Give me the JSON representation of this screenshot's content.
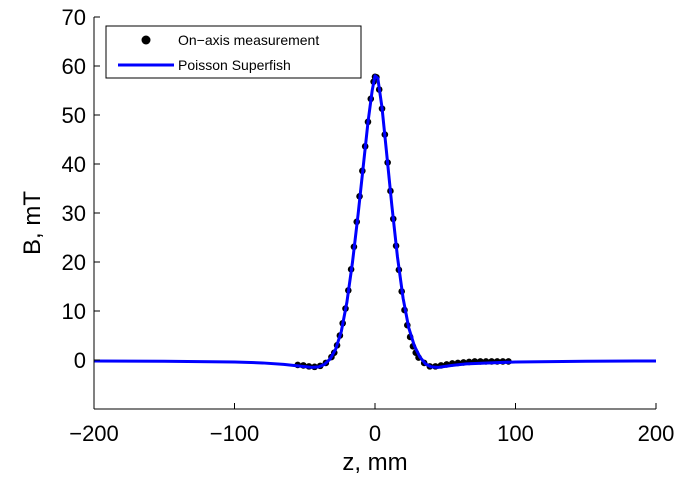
{
  "chart_data": {
    "type": "line",
    "title": "",
    "xlabel": "z, mm",
    "ylabel": "B, mT",
    "xlim": [
      -200,
      200
    ],
    "ylim": [
      -10,
      70
    ],
    "xticks": [
      -200,
      -100,
      0,
      100,
      200
    ],
    "yticks": [
      0,
      10,
      20,
      30,
      40,
      50,
      60,
      70
    ],
    "grid": false,
    "legend": {
      "placement": "top-left"
    },
    "series": [
      {
        "name": "On−axis measurement",
        "kind": "scatter",
        "color": "#000000",
        "x": [
          -55,
          -51,
          -47,
          -43,
          -39,
          -35,
          -31,
          -29,
          -27,
          -25,
          -23,
          -21,
          -19,
          -17,
          -15,
          -13,
          -11,
          -9,
          -7,
          -5,
          -3,
          -1,
          0,
          1,
          3,
          5,
          7,
          9,
          11,
          13,
          15,
          17,
          19,
          21,
          23,
          25,
          27,
          29,
          31,
          35,
          39,
          43,
          47,
          51,
          55,
          59,
          63,
          67,
          71,
          75,
          79,
          83,
          87,
          91,
          95
        ],
        "y": [
          -1.0,
          -1.1,
          -1.3,
          -1.4,
          -1.2,
          -0.6,
          0.6,
          1.5,
          3.0,
          5.0,
          7.5,
          10.5,
          14.2,
          18.5,
          23.1,
          28.2,
          33.4,
          38.6,
          43.6,
          48.6,
          53.3,
          56.8,
          57.8,
          57.7,
          55.2,
          51.3,
          46.0,
          40.3,
          34.5,
          28.8,
          23.3,
          18.4,
          14.0,
          10.2,
          7.1,
          4.7,
          2.8,
          1.5,
          0.5,
          -0.6,
          -1.3,
          -1.3,
          -1.1,
          -0.9,
          -0.7,
          -0.6,
          -0.5,
          -0.4,
          -0.3,
          -0.3,
          -0.3,
          -0.3,
          -0.3,
          -0.3,
          -0.3
        ]
      },
      {
        "name": "Poisson Superfish",
        "kind": "line",
        "color": "#0000ff",
        "x": [
          -200,
          -150,
          -100,
          -80,
          -65,
          -55,
          -45,
          -40,
          -36,
          -32,
          -28,
          -24,
          -20,
          -16,
          -12,
          -8,
          -5,
          -2,
          0,
          2,
          5,
          8,
          12,
          16,
          20,
          24,
          28,
          32,
          36,
          40,
          45,
          55,
          65,
          80,
          100,
          150,
          200
        ],
        "y": [
          -0.2,
          -0.25,
          -0.4,
          -0.6,
          -0.9,
          -1.2,
          -1.5,
          -1.4,
          -0.9,
          0.2,
          2.2,
          5.8,
          11.8,
          20.0,
          29.8,
          40.5,
          48.5,
          55.0,
          58.0,
          57.5,
          51.5,
          43.0,
          31.5,
          21.0,
          12.6,
          6.6,
          2.9,
          0.6,
          -0.8,
          -1.4,
          -1.5,
          -1.1,
          -0.8,
          -0.6,
          -0.4,
          -0.25,
          -0.2
        ]
      }
    ]
  }
}
